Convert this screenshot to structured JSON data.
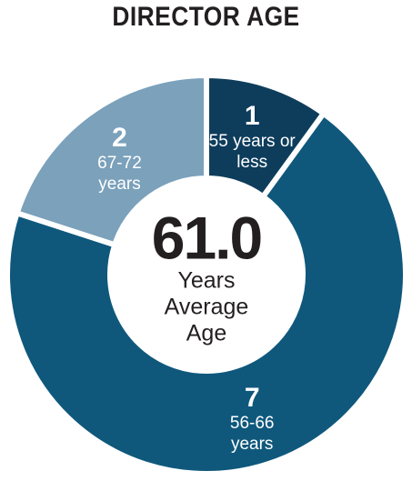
{
  "chart_data": {
    "type": "donut",
    "title": "DIRECTOR AGE",
    "categories": [
      "55 years or less",
      "56-66 years",
      "67-72 years"
    ],
    "values": [
      1,
      7,
      2
    ],
    "colors": [
      "#0e3d5c",
      "#0f587c",
      "#7ba1bb"
    ],
    "center_value": "61.0",
    "center_text": "Years Average Age"
  }
}
